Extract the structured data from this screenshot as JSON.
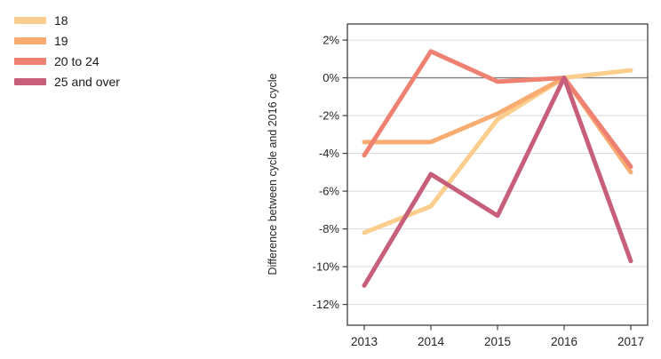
{
  "chart_data": {
    "type": "line",
    "title": "",
    "xlabel": "",
    "ylabel": "Difference between cycle and 2016 cycle",
    "x_labels": [
      "2013",
      "2014",
      "2015",
      "2016",
      "2017"
    ],
    "yticks": [
      2,
      0,
      -2,
      -4,
      -6,
      -8,
      -10,
      -12
    ],
    "ytick_labels": [
      "2%",
      "0%",
      "-2%",
      "-4%",
      "-6%",
      "-8%",
      "-10%",
      "-12%"
    ],
    "ylim": [
      -13.1,
      2.85
    ],
    "grid": "horizontal",
    "legend_position": "top-left",
    "grid_color": "#d9d9d9",
    "zero_line_color": "#7f7f7f",
    "axis_box_color": "#404040",
    "series": [
      {
        "name": "18",
        "color": "#FBCE8D",
        "values": [
          -8.2,
          -6.8,
          -2.2,
          0,
          0.4
        ]
      },
      {
        "name": "19",
        "color": "#F9AC71",
        "values": [
          -3.4,
          -3.4,
          -1.9,
          0,
          -5.0
        ]
      },
      {
        "name": "20 to 24",
        "color": "#EF8172",
        "values": [
          -4.1,
          1.4,
          -0.2,
          0,
          -4.7
        ]
      },
      {
        "name": "25 and over",
        "color": "#C75F7A",
        "values": [
          -11.0,
          -5.1,
          -7.3,
          0,
          -9.7
        ]
      }
    ]
  }
}
